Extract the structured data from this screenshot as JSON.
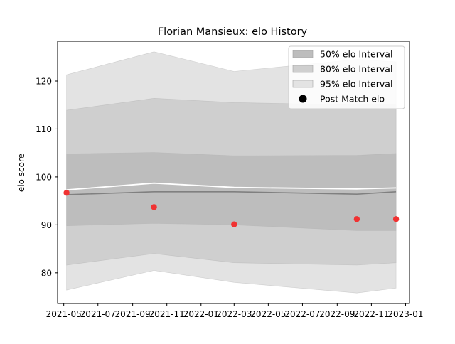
{
  "chart_data": {
    "type": "line",
    "title": "Florian Mansieux: elo History",
    "xlabel": "",
    "ylabel": "elo score",
    "xlim": [
      "2021-04-20",
      "2023-01-08"
    ],
    "ylim": [
      73.6,
      128.3
    ],
    "x_ticks": [
      "2021-05-01",
      "2021-07-01",
      "2021-09-01",
      "2021-11-01",
      "2022-01-01",
      "2022-03-01",
      "2022-05-01",
      "2022-07-01",
      "2022-09-01",
      "2022-11-01",
      "2023-01-01"
    ],
    "x_tick_labels": [
      "2021-05",
      "2021-07",
      "2021-09",
      "2021-11",
      "2022-01",
      "2022-03",
      "2022-05",
      "2022-07",
      "2022-09",
      "2022-11",
      "2023-01"
    ],
    "y_ticks": [
      80,
      90,
      100,
      110,
      120
    ],
    "grid": false,
    "legend_position": "top-right",
    "x": [
      "2021-05-06",
      "2021-10-09",
      "2022-03-01",
      "2022-10-06",
      "2022-12-15"
    ],
    "series": [
      {
        "name": "95% elo Interval",
        "kind": "band",
        "lower": [
          76.4,
          80.5,
          78.0,
          75.8,
          76.8
        ],
        "upper": [
          121.3,
          126.1,
          122.0,
          124.5,
          124.0
        ]
      },
      {
        "name": "80% elo Interval",
        "kind": "band",
        "lower": [
          81.6,
          84.0,
          82.1,
          81.6,
          82.1
        ],
        "upper": [
          113.9,
          116.4,
          115.5,
          115.0,
          115.0
        ]
      },
      {
        "name": "50% elo Interval",
        "kind": "band",
        "lower": [
          89.8,
          90.3,
          90.0,
          88.8,
          88.8
        ],
        "upper": [
          104.8,
          105.1,
          104.4,
          104.5,
          104.9
        ]
      },
      {
        "kind": "line",
        "role": "median",
        "values": [
          96.3,
          96.9,
          96.9,
          96.4,
          96.9
        ]
      },
      {
        "kind": "line",
        "role": "mean",
        "values": [
          97.3,
          98.7,
          97.8,
          97.5,
          97.7
        ]
      },
      {
        "name": "Post Match elo",
        "kind": "scatter",
        "values": [
          96.7,
          93.7,
          90.1,
          91.2,
          91.2
        ]
      }
    ],
    "legend": [
      {
        "label": "50% elo Interval",
        "swatch": "band50"
      },
      {
        "label": "80% elo Interval",
        "swatch": "band80"
      },
      {
        "label": "95% elo Interval",
        "swatch": "band95"
      },
      {
        "label": "Post Match elo",
        "swatch": "dot"
      }
    ],
    "colors": {
      "band95": "#e3e3e3",
      "band80": "#cfcfcf",
      "band50": "#bdbdbd",
      "median": "#808080",
      "mean": "#ffffff",
      "points": "#f03232"
    }
  }
}
